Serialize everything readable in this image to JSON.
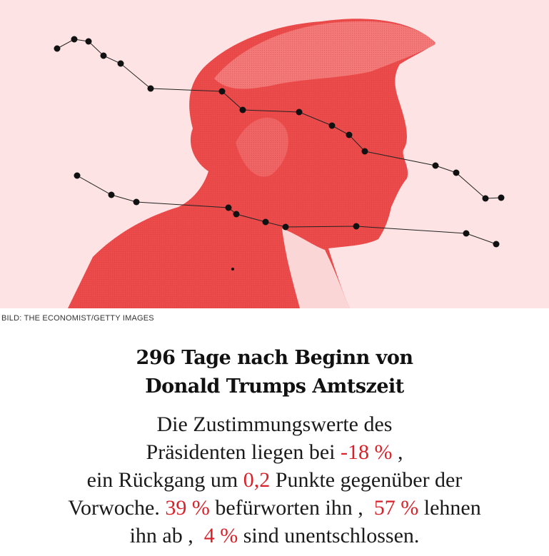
{
  "image": {
    "description_icon": "trump-profile-illustration",
    "tint_color": "#ec4b4b",
    "background_color": "#fde3e3"
  },
  "caption": "BILD: THE ECONOMIST/GETTY IMAGES",
  "headline": {
    "line1": "296 Tage nach Beginn von",
    "line2": "Donald Trumps Amtszeit"
  },
  "body": {
    "line1": "Die Zustimmungswerte des",
    "line2_prefix": "Präsidenten liegen bei ",
    "net_approval": "-18 %",
    "line2_suffix": " ,",
    "line3_prefix": "ein Rückgang um ",
    "change": "0,2",
    "line3_suffix": " Punkte gegenüber der",
    "line4_prefix": "Vorwoche. ",
    "approve": "39 %",
    "line4_mid": " befürworten ihn ,  ",
    "disapprove": "57 %",
    "line4_suffix": " lehnen",
    "line5_prefix": "ihn ab ,  ",
    "undecided": "4 %",
    "line5_suffix": " sind unentschlossen."
  },
  "colors": {
    "accent": "#d8222a",
    "text": "#1a1a1a"
  }
}
